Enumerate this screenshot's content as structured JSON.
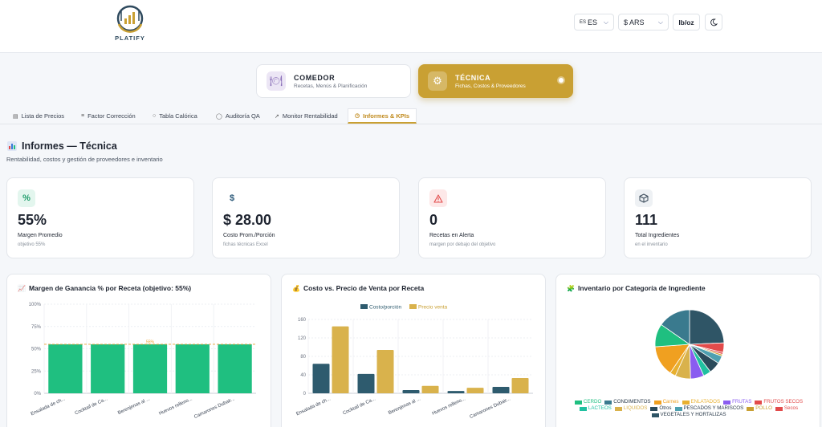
{
  "header": {
    "logo_text": "PLATIFY",
    "lang_flag": "ES",
    "lang_label": "ES",
    "currency_label": "$ ARS",
    "units_label": "lb/oz",
    "theme_icon": "moon-icon"
  },
  "modules": [
    {
      "title": "COMEDOR",
      "subtitle": "Recetas, Menús & Planificación",
      "icon": "plate-icon"
    },
    {
      "title": "TÉCNICA",
      "subtitle": "Fichas, Costos & Proveedores",
      "icon": "gear-icon"
    }
  ],
  "tabs": [
    {
      "label": "Lista de Precios",
      "icon": "document-icon"
    },
    {
      "label": "Factor Corrección",
      "icon": "sliders-icon"
    },
    {
      "label": "Tabla Calórica",
      "icon": "apple-icon"
    },
    {
      "label": "Auditoría QA",
      "icon": "shield-icon"
    },
    {
      "label": "Monitor Rentabilidad",
      "icon": "trend-icon"
    },
    {
      "label": "Informes & KPIs",
      "icon": "clock-icon",
      "active": true
    }
  ],
  "section": {
    "title": "Informes — Técnica",
    "subtitle": "Rentabilidad, costos y gestión de proveedores e inventario"
  },
  "kpis": [
    {
      "icon": "%",
      "value": "55%",
      "label": "Margen Promedio",
      "sub": "objetivo 55%",
      "color": "#1f9d6b",
      "bg": "#e3f6ee"
    },
    {
      "icon": "$",
      "value": "$ 28.00",
      "label": "Costo Prom./Porción",
      "sub": "fichas técnicas Excel",
      "color": "#2c5a7a",
      "bg": "#ffffff"
    },
    {
      "icon": "!",
      "value": "0",
      "label": "Recetas en Alerta",
      "sub": "margen por debajo del objetivo",
      "color": "#e24b4b",
      "bg": "#fde8e8"
    },
    {
      "icon": "box",
      "value": "111",
      "label": "Total Ingredientes",
      "sub": "en el inventario",
      "color": "#3a4a5a",
      "bg": "#eef1f4"
    }
  ],
  "panels": {
    "margin_title": "Margen de Ganancia % por Receta (objetivo: 55%)",
    "cost_title": "Costo vs. Precio de Venta por Receta",
    "inventory_title": "Inventario por Categoría de Ingrediente"
  },
  "chart_data": [
    {
      "type": "bar",
      "title": "Margen de Ganancia % por Receta (objetivo: 55%)",
      "categories": [
        "Ensalada de ch...",
        "Cocktail de Ca...",
        "Berenjenas al ...",
        "Huevos relleno...",
        "Camarones Dubair..."
      ],
      "values": [
        55,
        55,
        55,
        55,
        55
      ],
      "ylim": [
        0,
        100
      ],
      "yticks": [
        "0%",
        "25%",
        "50%",
        "75%",
        "100%"
      ],
      "target": 55,
      "target_label": "55%",
      "color": "#1fbf80"
    },
    {
      "type": "bar",
      "title": "Costo vs. Precio de Venta por Receta",
      "categories": [
        "Ensalada de ch...",
        "Cocktail de Ca...",
        "Berenjenas al ...",
        "Huevos relleno...",
        "Camarones Dubair..."
      ],
      "series": [
        {
          "name": "Costo/porción",
          "values": [
            64,
            42,
            7,
            5,
            14
          ],
          "color": "#2e5b6e"
        },
        {
          "name": "Precio venta",
          "values": [
            145,
            94,
            16,
            12,
            33
          ],
          "color": "#d9b24c"
        }
      ],
      "ylim": [
        0,
        160
      ],
      "yticks": [
        "0",
        "40",
        "80",
        "120",
        "160"
      ]
    },
    {
      "type": "pie",
      "title": "Inventario por Categoría de Ingrediente",
      "slices": [
        {
          "label": "CERDO",
          "value": 12,
          "color": "#1fbf80"
        },
        {
          "label": "CONDIMENTOS",
          "value": 17,
          "color": "#3a7a8e"
        },
        {
          "label": "Carnes",
          "value": 16,
          "color": "#f0a020"
        },
        {
          "label": "ENLATADOS",
          "value": 3,
          "color": "#e8b030"
        },
        {
          "label": "FRUTAS",
          "value": 7,
          "color": "#8a5cf0"
        },
        {
          "label": "FRUTOS SECOS",
          "value": 5,
          "color": "#e24b4b"
        },
        {
          "label": "LACTEOS",
          "value": 4,
          "color": "#20c0a0"
        },
        {
          "label": "LIQUIDOS",
          "value": 8,
          "color": "#d9b24c"
        },
        {
          "label": "Otros",
          "value": 6,
          "color": "#2a4a5a"
        },
        {
          "label": "PESCADOS Y MARISCOS",
          "value": 4,
          "color": "#4fa0b0"
        },
        {
          "label": "POLLO",
          "value": 1,
          "color": "#c9a033"
        },
        {
          "label": "Secos",
          "value": 1,
          "color": "#e24b4b"
        },
        {
          "label": "VEGETALES Y HORTALIZAS",
          "value": 27,
          "color": "#2f5566"
        }
      ]
    }
  ]
}
